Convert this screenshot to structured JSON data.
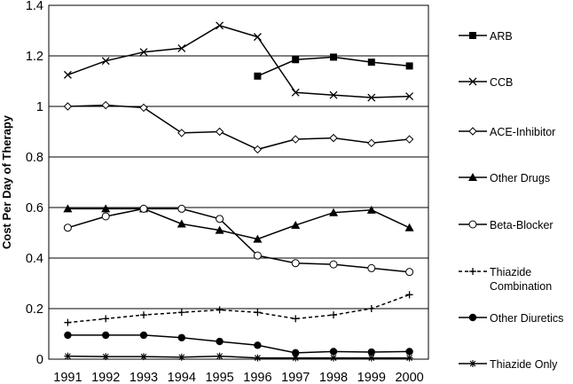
{
  "chart_data": {
    "type": "line",
    "title": "",
    "xlabel": "",
    "ylabel": "Cost Per Day of Therapy",
    "ylim": [
      0,
      1.4
    ],
    "yticks": [
      "0",
      "0.2",
      "0.4",
      "0.6",
      "0.8",
      "1",
      "1.2",
      "1.4"
    ],
    "categories": [
      "1991",
      "1992",
      "1993",
      "1994",
      "1995",
      "1996",
      "1997",
      "1998",
      "1999",
      "2000"
    ],
    "grid": "horizontal",
    "legend_position": "right",
    "series": [
      {
        "name": "ARB",
        "name_lines": [
          "ARB"
        ],
        "marker": "square",
        "dash": "solid",
        "values": [
          null,
          null,
          null,
          null,
          null,
          1.12,
          1.185,
          1.195,
          1.175,
          1.16
        ]
      },
      {
        "name": "CCB",
        "name_lines": [
          "CCB"
        ],
        "marker": "x",
        "dash": "solid",
        "values": [
          1.125,
          1.18,
          1.215,
          1.23,
          1.32,
          1.275,
          1.055,
          1.045,
          1.035,
          1.04
        ]
      },
      {
        "name": "ACE-Inhibitor",
        "name_lines": [
          "ACE-Inhibitor"
        ],
        "marker": "diamond",
        "dash": "solid",
        "values": [
          1.0,
          1.005,
          0.995,
          0.895,
          0.9,
          0.83,
          0.87,
          0.875,
          0.855,
          0.87
        ]
      },
      {
        "name": "Other Drugs",
        "name_lines": [
          "Other Drugs"
        ],
        "marker": "triangle",
        "dash": "solid",
        "values": [
          0.595,
          0.595,
          0.595,
          0.535,
          0.51,
          0.475,
          0.53,
          0.58,
          0.59,
          0.52
        ]
      },
      {
        "name": "Beta-Blocker",
        "name_lines": [
          "Beta-Blocker"
        ],
        "marker": "circle-open",
        "dash": "solid",
        "values": [
          0.52,
          0.565,
          0.595,
          0.595,
          0.555,
          0.41,
          0.38,
          0.375,
          0.36,
          0.345
        ]
      },
      {
        "name": "Thiazide Combination",
        "name_lines": [
          "Thiazide",
          "Combination"
        ],
        "marker": "plus",
        "dash": "dashed",
        "values": [
          0.145,
          0.16,
          0.175,
          0.185,
          0.195,
          0.185,
          0.16,
          0.175,
          0.2,
          0.255
        ]
      },
      {
        "name": "Other Diuretics",
        "name_lines": [
          "Other Diuretics"
        ],
        "marker": "circle-filled",
        "dash": "solid",
        "values": [
          0.095,
          0.095,
          0.095,
          0.085,
          0.07,
          0.055,
          0.025,
          0.03,
          0.028,
          0.03
        ]
      },
      {
        "name": "Thiazide Only",
        "name_lines": [
          "Thiazide Only"
        ],
        "marker": "star",
        "dash": "solid",
        "values": [
          0.012,
          0.01,
          0.01,
          0.008,
          0.012,
          0.005,
          0.005,
          0.005,
          0.005,
          0.005
        ]
      }
    ]
  }
}
